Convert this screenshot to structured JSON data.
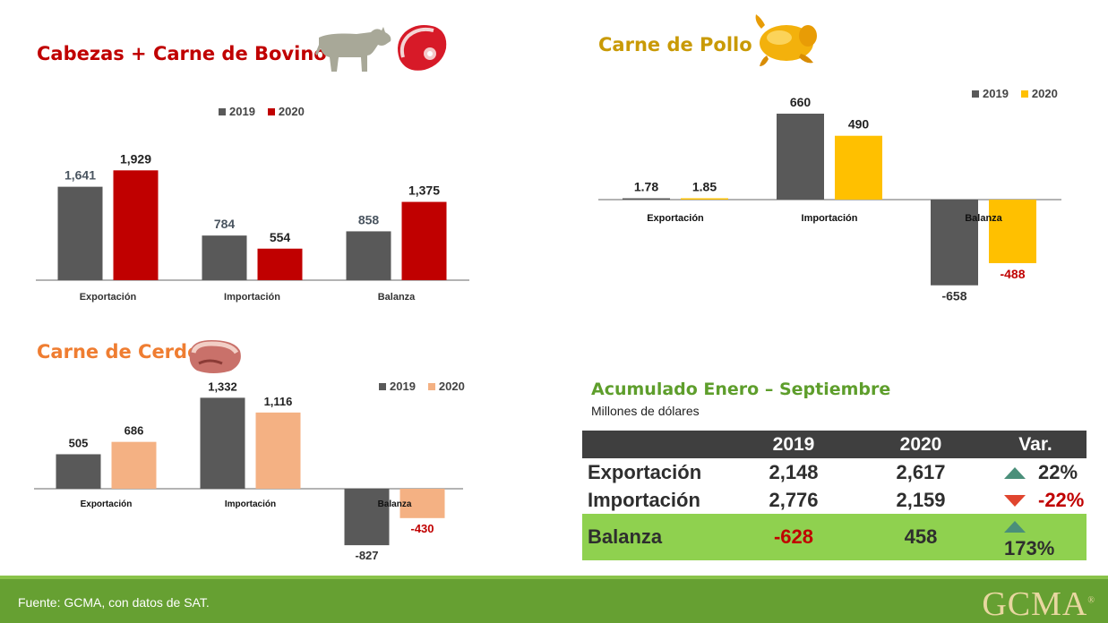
{
  "colors": {
    "gray": "#595959",
    "beef": "#c00000",
    "chicken": "#ffc000",
    "pork": "#f4b183",
    "chicken_title": "#c99a06",
    "pork_title": "#ef7d31",
    "beef_title": "#c00000",
    "summary_green": "#5e9e2c",
    "balance_row": "#8fd14f"
  },
  "icons": [
    "cow-icon",
    "beef-cut-icon",
    "roast-chicken-icon",
    "pork-cut-icon",
    "triangle-up-icon",
    "triangle-down-icon"
  ],
  "beef": {
    "title": "Cabezas + Carne de Bovino"
  },
  "chicken": {
    "title": "Carne de Pollo"
  },
  "pork": {
    "title": "Carne de Cerdo"
  },
  "chart_data": [
    {
      "id": "beef",
      "type": "bar",
      "categories": [
        "Exportación",
        "Importación",
        "Balanza"
      ],
      "series": [
        {
          "name": "2019",
          "values": [
            1641,
            784,
            858
          ],
          "labels": [
            "1,641",
            "784",
            "858"
          ]
        },
        {
          "name": "2020",
          "values": [
            1929,
            554,
            1375
          ],
          "labels": [
            "1,929",
            "554",
            "1,375"
          ]
        }
      ],
      "ylim": [
        0,
        2200
      ],
      "legend": "top-right",
      "grid": false
    },
    {
      "id": "chicken",
      "type": "bar",
      "categories": [
        "Exportación",
        "Importación",
        "Balanza"
      ],
      "series": [
        {
          "name": "2019",
          "values": [
            1.78,
            660,
            -658
          ],
          "labels": [
            "1.78",
            "660",
            "-658"
          ]
        },
        {
          "name": "2020",
          "values": [
            1.85,
            490,
            -488
          ],
          "labels": [
            "1.85",
            "490",
            "-488"
          ]
        }
      ],
      "ylim": [
        -700,
        700
      ],
      "legend": "top-right",
      "grid": false
    },
    {
      "id": "pork",
      "type": "bar",
      "categories": [
        "Exportación",
        "Importación",
        "Balanza"
      ],
      "series": [
        {
          "name": "2019",
          "values": [
            505,
            1332,
            -827
          ],
          "labels": [
            "505",
            "1,332",
            "-827"
          ]
        },
        {
          "name": "2020",
          "values": [
            686,
            1116,
            -430
          ],
          "labels": [
            "686",
            "1,116",
            "-430"
          ]
        }
      ],
      "ylim": [
        -900,
        1500
      ],
      "legend": "top-right",
      "grid": false
    }
  ],
  "summary": {
    "title": "Acumulado Enero – Septiembre",
    "subtitle": "Millones de dólares",
    "headers": [
      "",
      "2019",
      "2020",
      "Var."
    ],
    "rows": [
      {
        "label": "Exportación",
        "v2019": "2,148",
        "v2020": "2,617",
        "var": "22%",
        "trend": "up"
      },
      {
        "label": "Importación",
        "v2019": "2,776",
        "v2020": "2,159",
        "var": "-22%",
        "trend": "down"
      },
      {
        "label": "Balanza",
        "v2019": "-628",
        "v2020": "458",
        "var": "173%",
        "trend": "up"
      }
    ]
  },
  "footer": {
    "source": "Fuente: GCMA, con datos de SAT.",
    "logo": "GCMA",
    "logo_mark": "®"
  }
}
